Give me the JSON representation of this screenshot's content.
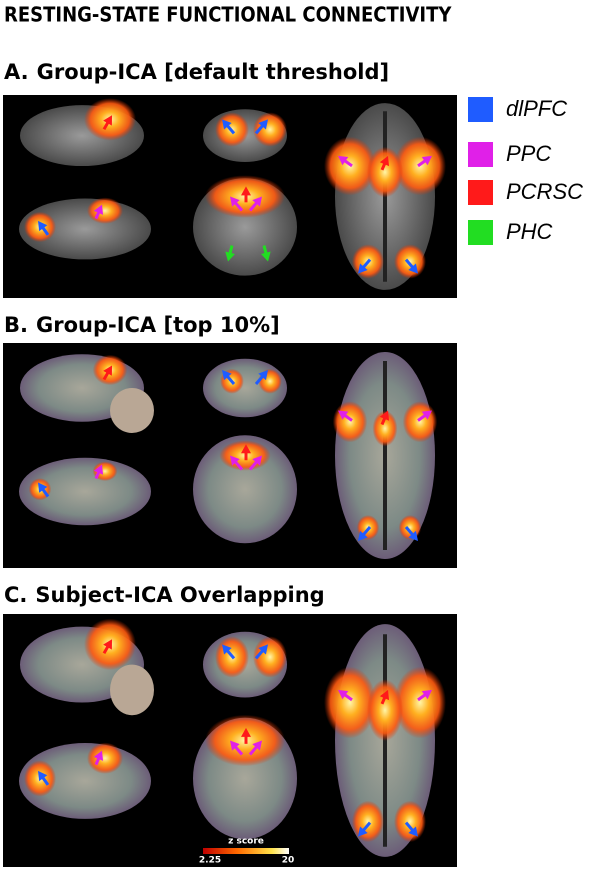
{
  "title": "RESTING-STATE FUNCTIONAL CONNECTIVITY",
  "panels": [
    {
      "letter": "A.",
      "heading": "Group-ICA [default threshold]"
    },
    {
      "letter": "B.",
      "heading": "Group-ICA [top 10%]"
    },
    {
      "letter": "C.",
      "heading": "Subject-ICA Overlapping"
    }
  ],
  "legend": [
    {
      "label": "dlPFC",
      "color": "#1f5cff"
    },
    {
      "label": "PPC",
      "color": "#e020e8"
    },
    {
      "label": "PCRSC",
      "color": "#ff1a1a"
    },
    {
      "label": "PHC",
      "color": "#22dd22"
    }
  ],
  "colorbar": {
    "label": "z score",
    "min": "2.25",
    "max": "20"
  }
}
